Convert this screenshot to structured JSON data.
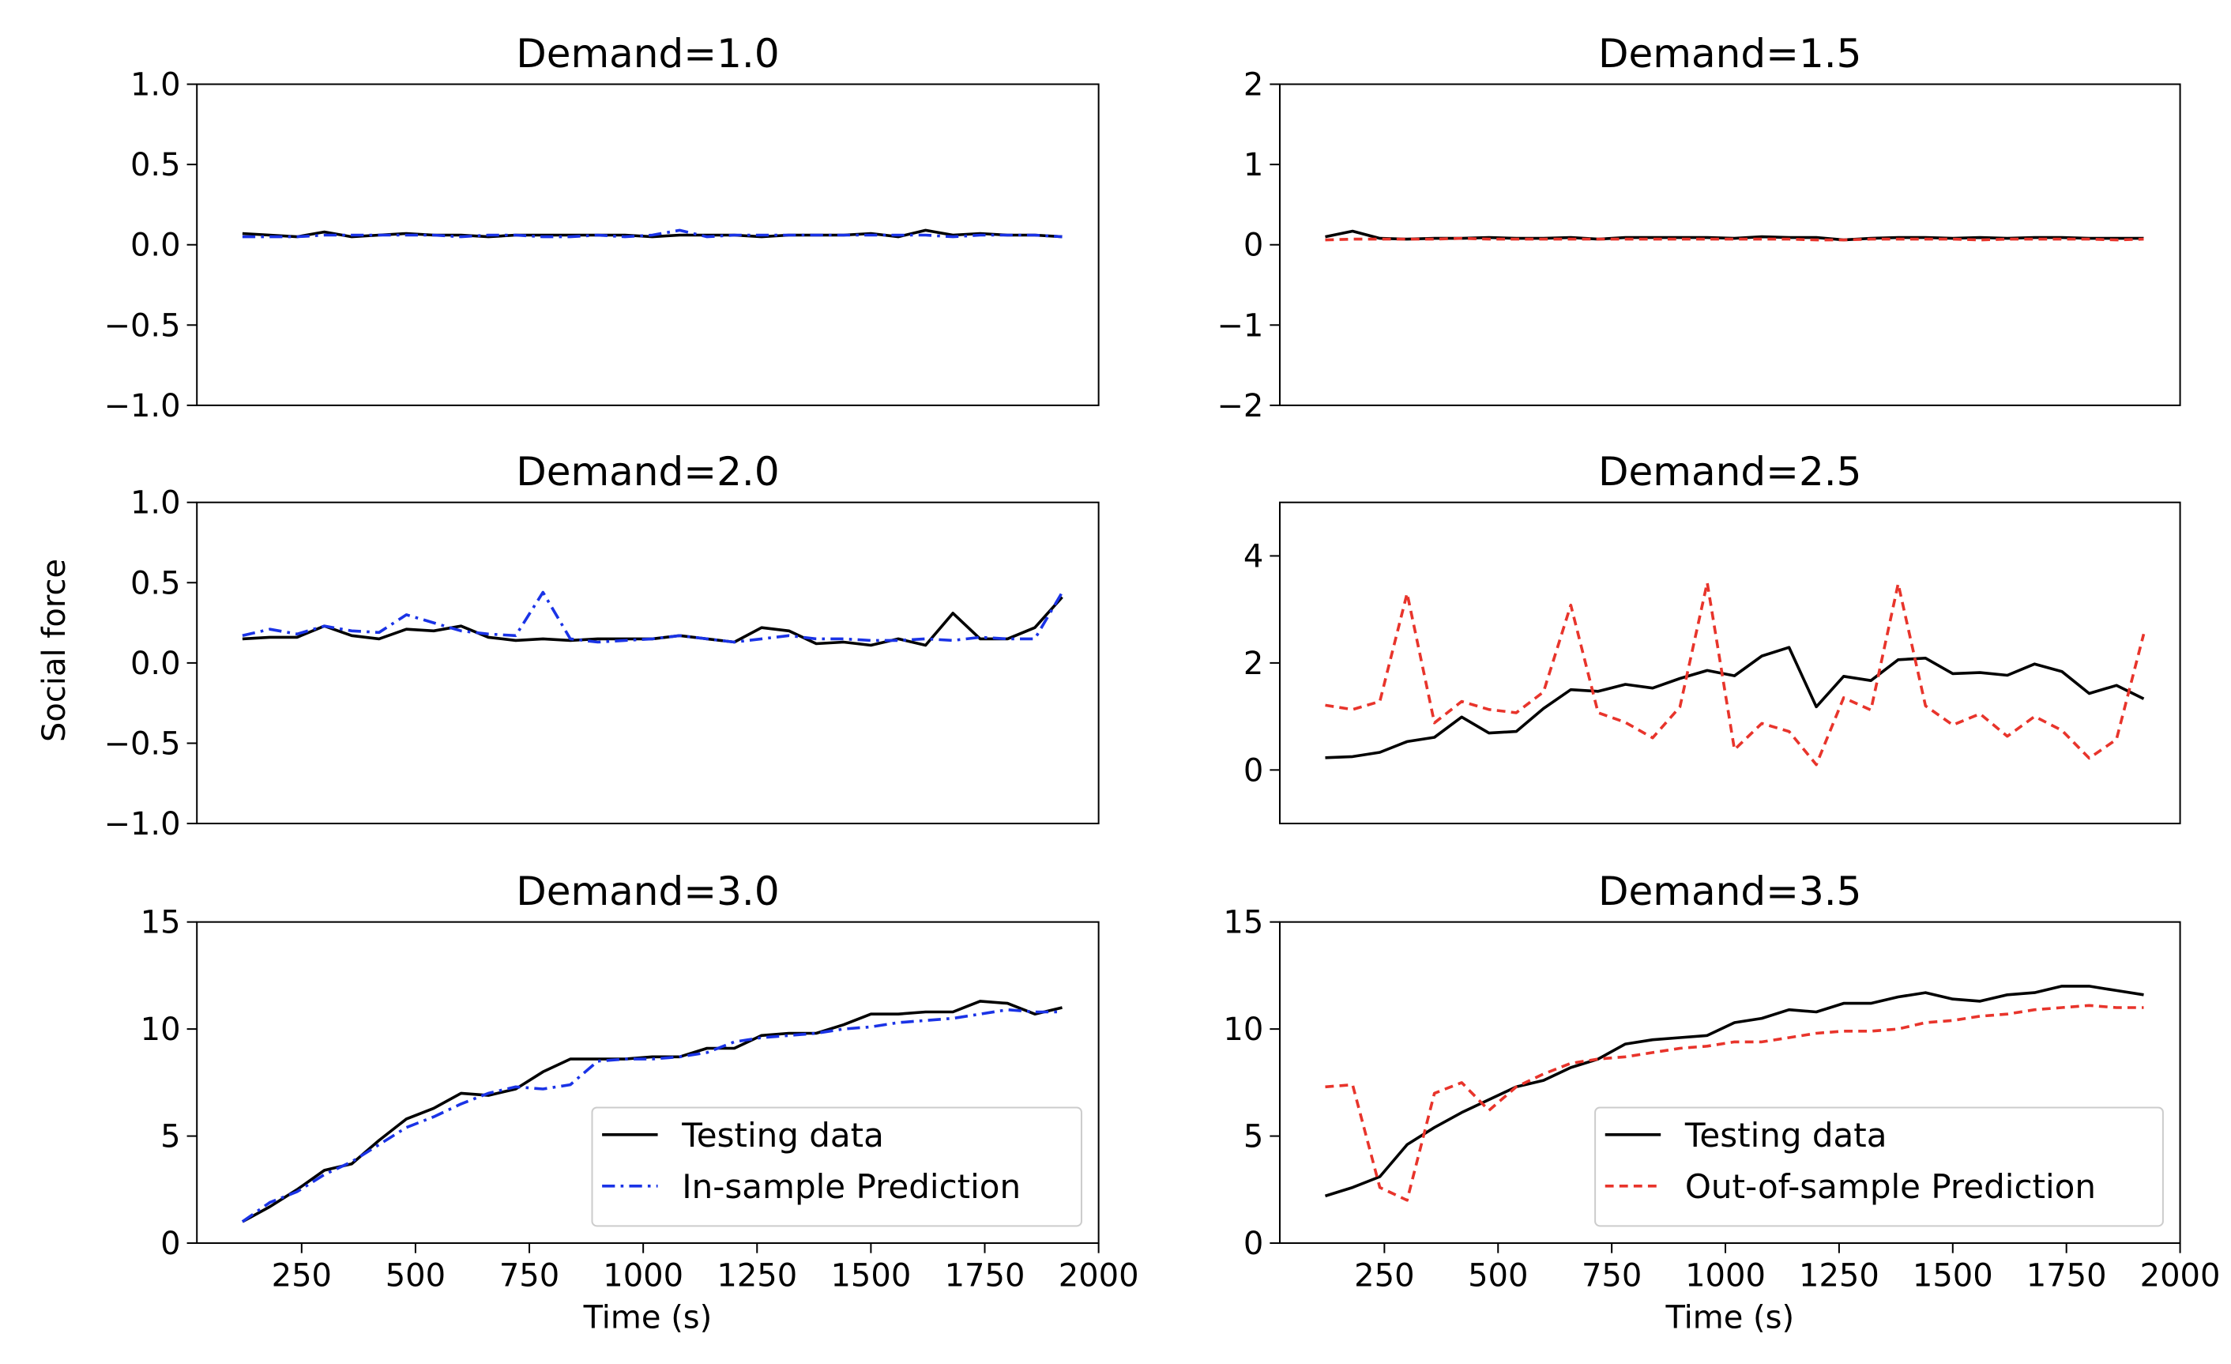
{
  "figure": {
    "ylabel": "Social force"
  },
  "chart_data": [
    {
      "type": "line",
      "title": "Demand=1.0",
      "xlabel": "",
      "ylabel": "",
      "xlim": [
        20,
        2000
      ],
      "ylim": [
        -1.0,
        1.0
      ],
      "xticks": [],
      "yticks": [
        -1.0,
        -0.5,
        0.0,
        0.5,
        1.0
      ],
      "ytick_labels": [
        "−1.0",
        "−0.5",
        "0.0",
        "0.5",
        "1.0"
      ],
      "x": [
        120,
        180,
        240,
        300,
        360,
        420,
        480,
        540,
        600,
        660,
        720,
        780,
        840,
        900,
        960,
        1020,
        1080,
        1140,
        1200,
        1260,
        1320,
        1380,
        1440,
        1500,
        1560,
        1620,
        1680,
        1740,
        1800,
        1860,
        1920
      ],
      "series": [
        {
          "name": "Testing data",
          "color": "#000000",
          "style": "solid",
          "values": [
            0.07,
            0.06,
            0.05,
            0.08,
            0.05,
            0.06,
            0.07,
            0.06,
            0.06,
            0.05,
            0.06,
            0.06,
            0.06,
            0.06,
            0.06,
            0.05,
            0.06,
            0.06,
            0.06,
            0.05,
            0.06,
            0.06,
            0.06,
            0.07,
            0.05,
            0.09,
            0.06,
            0.07,
            0.06,
            0.06,
            0.05
          ]
        },
        {
          "name": "In-sample Prediction",
          "color": "#1a33e6",
          "style": "dashdot",
          "values": [
            0.05,
            0.05,
            0.05,
            0.06,
            0.06,
            0.06,
            0.06,
            0.06,
            0.05,
            0.06,
            0.06,
            0.05,
            0.05,
            0.06,
            0.05,
            0.06,
            0.09,
            0.05,
            0.06,
            0.06,
            0.06,
            0.06,
            0.06,
            0.06,
            0.06,
            0.06,
            0.05,
            0.06,
            0.06,
            0.06,
            0.05
          ]
        }
      ]
    },
    {
      "type": "line",
      "title": "Demand=1.5",
      "xlabel": "",
      "ylabel": "",
      "xlim": [
        20,
        2000
      ],
      "ylim": [
        -2,
        2
      ],
      "xticks": [],
      "yticks": [
        -2,
        -1,
        0,
        1,
        2
      ],
      "ytick_labels": [
        "−2",
        "−1",
        "0",
        "1",
        "2"
      ],
      "x": [
        120,
        180,
        240,
        300,
        360,
        420,
        480,
        540,
        600,
        660,
        720,
        780,
        840,
        900,
        960,
        1020,
        1080,
        1140,
        1200,
        1260,
        1320,
        1380,
        1440,
        1500,
        1560,
        1620,
        1680,
        1740,
        1800,
        1860,
        1920
      ],
      "series": [
        {
          "name": "Testing data",
          "color": "#000000",
          "style": "solid",
          "values": [
            0.1,
            0.17,
            0.08,
            0.07,
            0.08,
            0.08,
            0.09,
            0.08,
            0.08,
            0.09,
            0.07,
            0.09,
            0.09,
            0.09,
            0.09,
            0.08,
            0.1,
            0.09,
            0.09,
            0.06,
            0.08,
            0.09,
            0.09,
            0.08,
            0.09,
            0.08,
            0.09,
            0.09,
            0.08,
            0.08,
            0.08
          ]
        },
        {
          "name": "Out-of-sample Prediction",
          "color": "#e8342b",
          "style": "dashed",
          "values": [
            0.06,
            0.07,
            0.07,
            0.07,
            0.07,
            0.08,
            0.07,
            0.07,
            0.07,
            0.07,
            0.07,
            0.07,
            0.07,
            0.07,
            0.07,
            0.07,
            0.07,
            0.07,
            0.06,
            0.06,
            0.07,
            0.07,
            0.07,
            0.07,
            0.06,
            0.07,
            0.07,
            0.07,
            0.07,
            0.06,
            0.07
          ]
        }
      ]
    },
    {
      "type": "line",
      "title": "Demand=2.0",
      "xlabel": "",
      "ylabel": "",
      "xlim": [
        20,
        2000
      ],
      "ylim": [
        -1.0,
        1.0
      ],
      "xticks": [],
      "yticks": [
        -1.0,
        -0.5,
        0.0,
        0.5,
        1.0
      ],
      "ytick_labels": [
        "−1.0",
        "−0.5",
        "0.0",
        "0.5",
        "1.0"
      ],
      "x": [
        120,
        180,
        240,
        300,
        360,
        420,
        480,
        540,
        600,
        660,
        720,
        780,
        840,
        900,
        960,
        1020,
        1080,
        1140,
        1200,
        1260,
        1320,
        1380,
        1440,
        1500,
        1560,
        1620,
        1680,
        1740,
        1800,
        1860,
        1920
      ],
      "series": [
        {
          "name": "Testing data",
          "color": "#000000",
          "style": "solid",
          "values": [
            0.15,
            0.16,
            0.16,
            0.23,
            0.17,
            0.15,
            0.21,
            0.2,
            0.23,
            0.16,
            0.14,
            0.15,
            0.14,
            0.15,
            0.15,
            0.15,
            0.17,
            0.15,
            0.13,
            0.22,
            0.2,
            0.12,
            0.13,
            0.11,
            0.15,
            0.11,
            0.31,
            0.15,
            0.15,
            0.22,
            0.41
          ]
        },
        {
          "name": "In-sample Prediction",
          "color": "#1a33e6",
          "style": "dashdot",
          "values": [
            0.17,
            0.21,
            0.18,
            0.23,
            0.2,
            0.19,
            0.3,
            0.25,
            0.2,
            0.18,
            0.17,
            0.44,
            0.15,
            0.13,
            0.14,
            0.15,
            0.17,
            0.15,
            0.13,
            0.15,
            0.17,
            0.15,
            0.15,
            0.14,
            0.14,
            0.15,
            0.14,
            0.16,
            0.15,
            0.15,
            0.44
          ]
        }
      ]
    },
    {
      "type": "line",
      "title": "Demand=2.5",
      "xlabel": "",
      "ylabel": "",
      "xlim": [
        20,
        2000
      ],
      "ylim": [
        -1,
        5
      ],
      "xticks": [],
      "yticks": [
        0,
        2,
        4
      ],
      "ytick_labels": [
        "0",
        "2",
        "4"
      ],
      "x": [
        120,
        180,
        240,
        300,
        360,
        420,
        480,
        540,
        600,
        660,
        720,
        780,
        840,
        900,
        960,
        1020,
        1080,
        1140,
        1200,
        1260,
        1320,
        1380,
        1440,
        1500,
        1560,
        1620,
        1680,
        1740,
        1800,
        1860,
        1920
      ],
      "series": [
        {
          "name": "Testing data",
          "color": "#000000",
          "style": "solid",
          "values": [
            0.23,
            0.25,
            0.33,
            0.53,
            0.61,
            0.99,
            0.69,
            0.72,
            1.15,
            1.5,
            1.47,
            1.6,
            1.53,
            1.71,
            1.86,
            1.76,
            2.13,
            2.29,
            1.18,
            1.75,
            1.67,
            2.06,
            2.09,
            1.8,
            1.82,
            1.77,
            1.98,
            1.84,
            1.43,
            1.58,
            1.33
          ]
        },
        {
          "name": "Out-of-sample Prediction",
          "color": "#e8342b",
          "style": "dashed",
          "values": [
            1.21,
            1.13,
            1.28,
            3.3,
            0.88,
            1.28,
            1.13,
            1.07,
            1.46,
            3.08,
            1.07,
            0.89,
            0.6,
            1.18,
            3.5,
            0.38,
            0.87,
            0.72,
            0.1,
            1.35,
            1.12,
            3.48,
            1.2,
            0.84,
            1.05,
            0.63,
            1.0,
            0.74,
            0.22,
            0.57,
            2.54
          ]
        }
      ]
    },
    {
      "type": "line",
      "title": "Demand=3.0",
      "xlabel": "Time (s)",
      "ylabel": "",
      "xlim": [
        20,
        2000
      ],
      "ylim": [
        0,
        15
      ],
      "xticks": [
        250,
        500,
        750,
        1000,
        1250,
        1500,
        1750,
        2000
      ],
      "yticks": [
        0,
        5,
        10,
        15
      ],
      "ytick_labels": [
        "0",
        "5",
        "10",
        "15"
      ],
      "legend": "lower-right",
      "x": [
        120,
        180,
        240,
        300,
        360,
        420,
        480,
        540,
        600,
        660,
        720,
        780,
        840,
        900,
        960,
        1020,
        1080,
        1140,
        1200,
        1260,
        1320,
        1380,
        1440,
        1500,
        1560,
        1620,
        1680,
        1740,
        1800,
        1860,
        1920
      ],
      "series": [
        {
          "name": "Testing data",
          "color": "#000000",
          "style": "solid",
          "values": [
            1.0,
            1.7,
            2.5,
            3.4,
            3.7,
            4.8,
            5.8,
            6.3,
            7.0,
            6.9,
            7.2,
            8.0,
            8.6,
            8.6,
            8.6,
            8.7,
            8.7,
            9.1,
            9.1,
            9.7,
            9.8,
            9.8,
            10.2,
            10.7,
            10.7,
            10.8,
            10.8,
            11.3,
            11.2,
            10.7,
            11.0
          ]
        },
        {
          "name": "In-sample Prediction",
          "color": "#1a33e6",
          "style": "dashdot",
          "values": [
            1.0,
            1.9,
            2.4,
            3.2,
            3.8,
            4.6,
            5.4,
            5.9,
            6.5,
            7.0,
            7.3,
            7.2,
            7.4,
            8.5,
            8.6,
            8.6,
            8.7,
            8.9,
            9.4,
            9.6,
            9.7,
            9.8,
            10.0,
            10.1,
            10.3,
            10.4,
            10.5,
            10.7,
            10.9,
            10.8,
            10.8
          ]
        }
      ]
    },
    {
      "type": "line",
      "title": "Demand=3.5",
      "xlabel": "Time (s)",
      "ylabel": "",
      "xlim": [
        20,
        2000
      ],
      "ylim": [
        0,
        15
      ],
      "xticks": [
        250,
        500,
        750,
        1000,
        1250,
        1500,
        1750,
        2000
      ],
      "yticks": [
        0,
        5,
        10,
        15
      ],
      "ytick_labels": [
        "0",
        "5",
        "10",
        "15"
      ],
      "legend": "lower-right",
      "x": [
        120,
        180,
        240,
        300,
        360,
        420,
        480,
        540,
        600,
        660,
        720,
        780,
        840,
        900,
        960,
        1020,
        1080,
        1140,
        1200,
        1260,
        1320,
        1380,
        1440,
        1500,
        1560,
        1620,
        1680,
        1740,
        1800,
        1860,
        1920
      ],
      "series": [
        {
          "name": "Testing data",
          "color": "#000000",
          "style": "solid",
          "values": [
            2.2,
            2.6,
            3.1,
            4.6,
            5.4,
            6.1,
            6.7,
            7.3,
            7.6,
            8.2,
            8.6,
            9.3,
            9.5,
            9.6,
            9.7,
            10.3,
            10.5,
            10.9,
            10.8,
            11.2,
            11.2,
            11.5,
            11.7,
            11.4,
            11.3,
            11.6,
            11.7,
            12.0,
            12.0,
            11.8,
            11.6
          ]
        },
        {
          "name": "Out-of-sample Prediction",
          "color": "#e8342b",
          "style": "dashed",
          "values": [
            7.3,
            7.4,
            2.6,
            2.0,
            7.0,
            7.5,
            6.2,
            7.3,
            7.9,
            8.4,
            8.6,
            8.7,
            8.9,
            9.1,
            9.2,
            9.4,
            9.4,
            9.6,
            9.8,
            9.9,
            9.9,
            10.0,
            10.3,
            10.4,
            10.6,
            10.7,
            10.9,
            11.0,
            11.1,
            11.0,
            11.0
          ]
        }
      ]
    }
  ]
}
